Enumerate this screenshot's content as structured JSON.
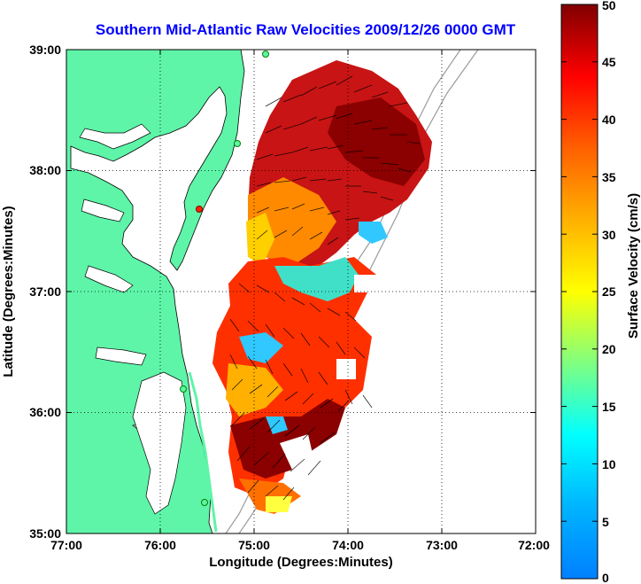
{
  "map": {
    "title": "Southern Mid-Atlantic Raw Velocities 2009/12/26 0000 GMT",
    "xlabel": "Longitude (Degrees:Minutes)",
    "ylabel": "Latitude (Degrees:Minutes)",
    "x_ticks": [
      "77:00",
      "76:00",
      "75:00",
      "74:00",
      "73:00",
      "72:00"
    ],
    "y_ticks": [
      "39:00",
      "38:00",
      "37:00",
      "36:00",
      "35:00"
    ],
    "lon_range": [
      -77,
      -72
    ],
    "lat_range": [
      35,
      39
    ],
    "grid": "dotted",
    "land_color": "#5ef5a8",
    "colorbar": {
      "label": "Surface Velocity (cm/s)",
      "ticks": [
        "50",
        "45",
        "40",
        "35",
        "30",
        "25",
        "20",
        "15",
        "10",
        "5",
        "0"
      ],
      "range": [
        0,
        50
      ],
      "colormap": "jet"
    }
  }
}
